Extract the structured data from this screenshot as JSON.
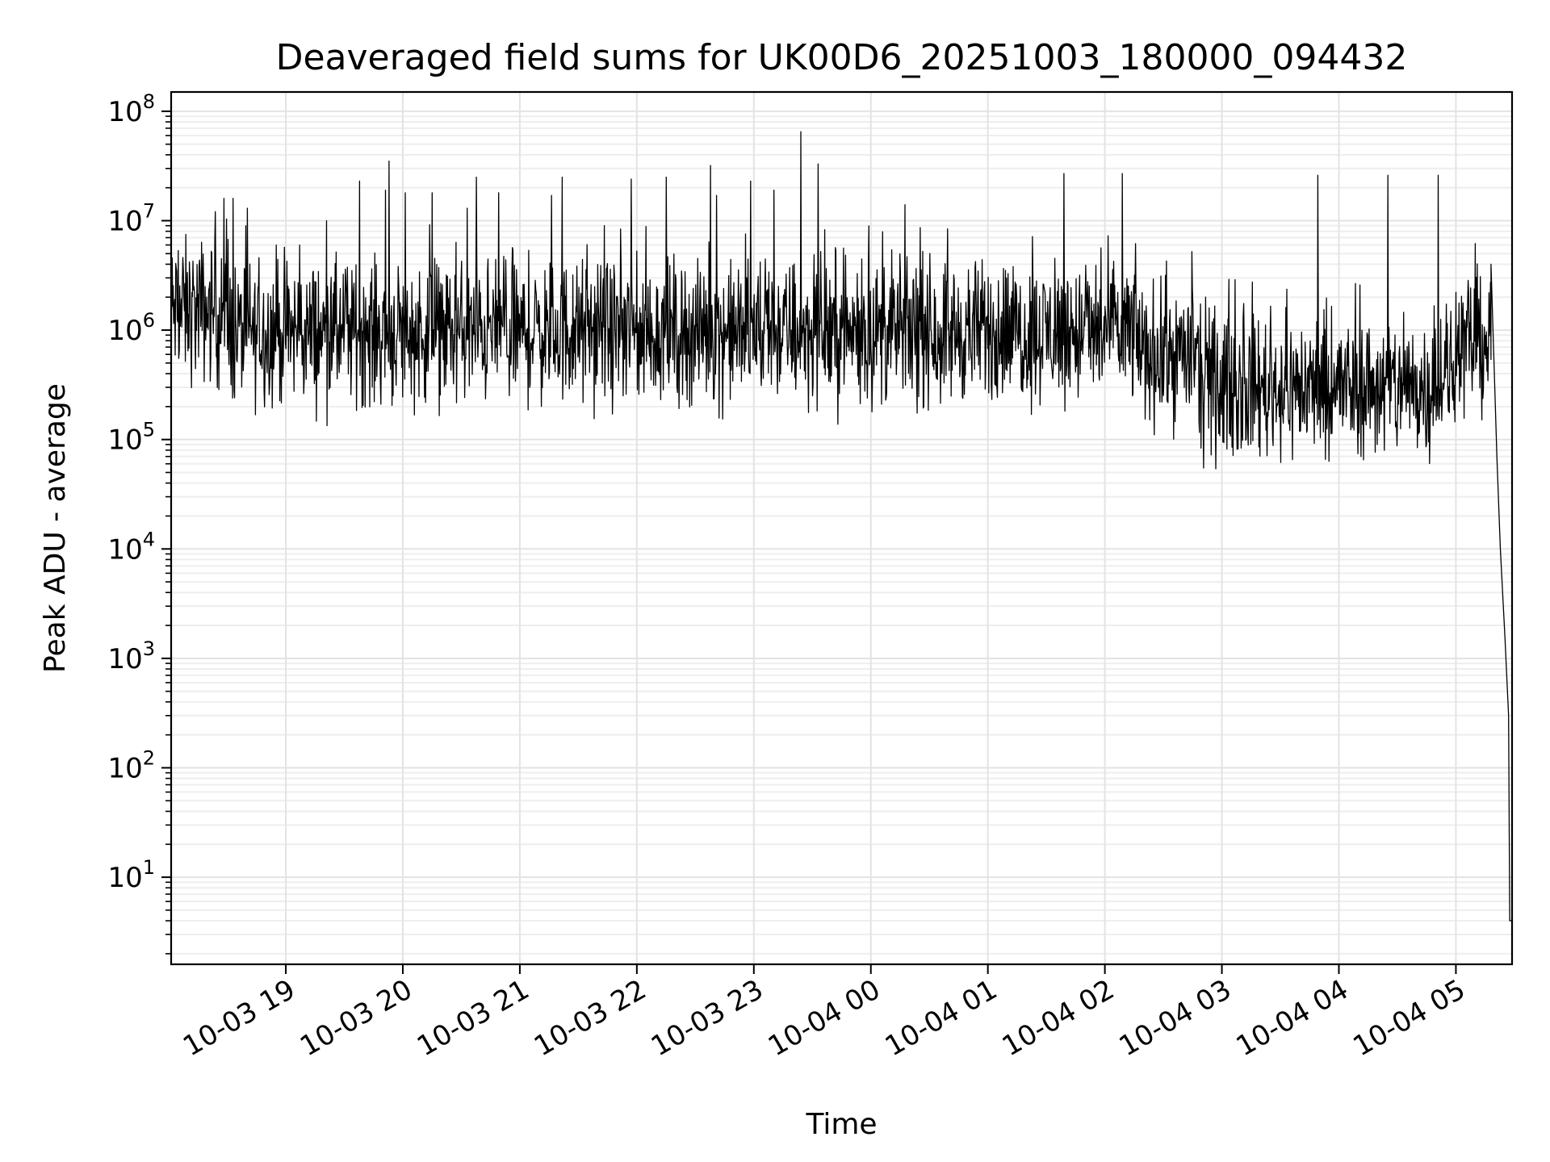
{
  "chart_data": {
    "type": "line",
    "title": "Deaveraged field sums for UK00D6_20251003_180000_094432",
    "xlabel": "Time",
    "ylabel": "Peak ADU - average",
    "yscale": "log",
    "ylim": [
      1.6,
      150000000
    ],
    "xlim_hours": [
      18.02,
      29.48
    ],
    "grid": true,
    "series_color": "#000000",
    "x_ticks": [
      {
        "hour": 19,
        "label": "10-03 19"
      },
      {
        "hour": 20,
        "label": "10-03 20"
      },
      {
        "hour": 21,
        "label": "10-03 21"
      },
      {
        "hour": 22,
        "label": "10-03 22"
      },
      {
        "hour": 23,
        "label": "10-03 23"
      },
      {
        "hour": 24,
        "label": "10-04 00"
      },
      {
        "hour": 25,
        "label": "10-04 01"
      },
      {
        "hour": 26,
        "label": "10-04 02"
      },
      {
        "hour": 27,
        "label": "10-04 03"
      },
      {
        "hour": 28,
        "label": "10-04 04"
      },
      {
        "hour": 29,
        "label": "10-04 05"
      }
    ],
    "y_ticks": [
      {
        "exp": 1,
        "label": "10",
        "sup": "1"
      },
      {
        "exp": 2,
        "label": "10",
        "sup": "2"
      },
      {
        "exp": 3,
        "label": "10",
        "sup": "3"
      },
      {
        "exp": 4,
        "label": "10",
        "sup": "4"
      },
      {
        "exp": 5,
        "label": "10",
        "sup": "5"
      },
      {
        "exp": 6,
        "label": "10",
        "sup": "6"
      },
      {
        "exp": 7,
        "label": "10",
        "sup": "7"
      },
      {
        "exp": 8,
        "label": "10",
        "sup": "8"
      }
    ],
    "baseline_segments": [
      {
        "from_hour": 18.02,
        "to_hour": 18.5,
        "median": 1500000
      },
      {
        "from_hour": 18.5,
        "to_hour": 26.3,
        "median": 950000
      },
      {
        "from_hour": 26.3,
        "to_hour": 26.8,
        "median": 600000
      },
      {
        "from_hour": 26.8,
        "to_hour": 28.8,
        "median": 300000
      },
      {
        "from_hour": 28.8,
        "to_hour": 29.0,
        "median": 380000
      },
      {
        "from_hour": 29.0,
        "to_hour": 29.3,
        "median": 800000
      }
    ],
    "spikes": [
      {
        "hour": 18.47,
        "value": 16000000
      },
      {
        "hour": 18.55,
        "value": 16000000
      },
      {
        "hour": 18.67,
        "value": 13000000
      },
      {
        "hour": 18.92,
        "value": 6000000
      },
      {
        "hour": 19.12,
        "value": 6000000
      },
      {
        "hour": 19.35,
        "value": 10000000
      },
      {
        "hour": 19.63,
        "value": 23000000
      },
      {
        "hour": 19.85,
        "value": 19000000
      },
      {
        "hour": 19.88,
        "value": 35000000
      },
      {
        "hour": 20.02,
        "value": 18000000
      },
      {
        "hour": 20.25,
        "value": 18000000
      },
      {
        "hour": 20.55,
        "value": 13000000
      },
      {
        "hour": 20.63,
        "value": 25000000
      },
      {
        "hour": 20.82,
        "value": 18000000
      },
      {
        "hour": 21.27,
        "value": 17000000
      },
      {
        "hour": 21.36,
        "value": 25000000
      },
      {
        "hour": 21.72,
        "value": 9000000
      },
      {
        "hour": 21.95,
        "value": 24000000
      },
      {
        "hour": 22.25,
        "value": 25000000
      },
      {
        "hour": 22.63,
        "value": 32000000
      },
      {
        "hour": 22.68,
        "value": 17000000
      },
      {
        "hour": 22.97,
        "value": 23000000
      },
      {
        "hour": 23.17,
        "value": 19000000
      },
      {
        "hour": 23.4,
        "value": 65000000
      },
      {
        "hour": 23.55,
        "value": 33000000
      },
      {
        "hour": 24.29,
        "value": 14000000
      },
      {
        "hour": 25.65,
        "value": 27000000
      },
      {
        "hour": 26.15,
        "value": 27000000
      },
      {
        "hour": 27.82,
        "value": 26000000
      },
      {
        "hour": 28.42,
        "value": 26000000
      },
      {
        "hour": 28.85,
        "value": 26000000
      }
    ],
    "end_drop": [
      {
        "hour": 29.3,
        "value": 4000000
      },
      {
        "hour": 29.35,
        "value": 70000
      },
      {
        "hour": 29.38,
        "value": 10000
      },
      {
        "hour": 29.42,
        "value": 1500
      },
      {
        "hour": 29.45,
        "value": 300
      },
      {
        "hour": 29.46,
        "value": 4
      },
      {
        "hour": 29.48,
        "value": 4
      }
    ],
    "sample_count": 2600
  }
}
